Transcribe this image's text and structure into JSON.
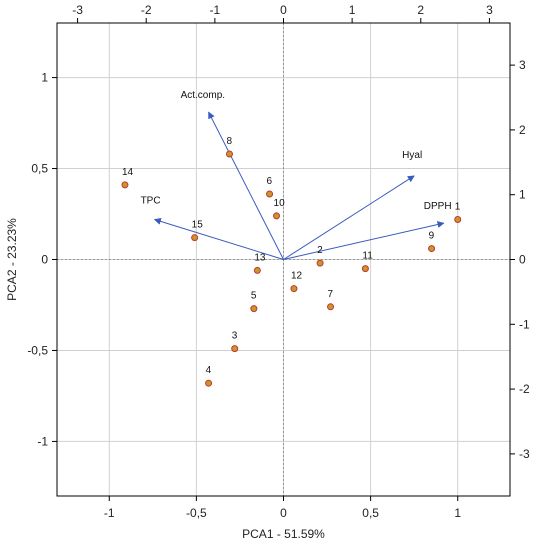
{
  "chart_data": {
    "type": "scatter",
    "title": "",
    "xlabel": "PCA1 - 51.59%",
    "ylabel": "PCA2 - 23.23%",
    "xlim": [
      -1.3,
      1.3
    ],
    "ylim": [
      -1.3,
      1.3
    ],
    "xticks": [
      -1,
      -0.5,
      0,
      0.5,
      1
    ],
    "xtick_labels": [
      "-1",
      "-0,5",
      "0",
      "0,5",
      "1"
    ],
    "yticks": [
      -1,
      -0.5,
      0,
      0.5,
      1
    ],
    "ytick_labels": [
      "-1",
      "-0,5",
      "0",
      "0,5",
      "1"
    ],
    "top_axis": {
      "lim": [
        -3.3,
        3.3
      ],
      "ticks": [
        -3,
        -2,
        -1,
        0,
        1,
        2,
        3
      ],
      "tick_labels": [
        "-3",
        "-2",
        "-1",
        "0",
        "1",
        "2",
        "3"
      ]
    },
    "right_axis": {
      "lim": [
        -3.65,
        3.65
      ],
      "ticks": [
        -3,
        -2,
        -1,
        0,
        1,
        2,
        3
      ],
      "tick_labels": [
        "-3",
        "-2",
        "-1",
        "0",
        "1",
        "2",
        "3"
      ]
    },
    "grid": true,
    "points": [
      {
        "label": "1",
        "x": 1.0,
        "y": 0.22
      },
      {
        "label": "2",
        "x": 0.21,
        "y": -0.02
      },
      {
        "label": "3",
        "x": -0.28,
        "y": -0.49
      },
      {
        "label": "4",
        "x": -0.43,
        "y": -0.68
      },
      {
        "label": "5",
        "x": -0.17,
        "y": -0.27
      },
      {
        "label": "6",
        "x": -0.08,
        "y": 0.36
      },
      {
        "label": "7",
        "x": 0.27,
        "y": -0.26
      },
      {
        "label": "8",
        "x": -0.31,
        "y": 0.58
      },
      {
        "label": "9",
        "x": 0.85,
        "y": 0.06
      },
      {
        "label": "10",
        "x": -0.04,
        "y": 0.24
      },
      {
        "label": "11",
        "x": 0.47,
        "y": -0.05
      },
      {
        "label": "12",
        "x": 0.06,
        "y": -0.16
      },
      {
        "label": "13",
        "x": -0.15,
        "y": -0.06
      },
      {
        "label": "14",
        "x": -0.91,
        "y": 0.41
      },
      {
        "label": "15",
        "x": -0.51,
        "y": 0.12
      }
    ],
    "vectors": [
      {
        "label": "Act.comp.",
        "x": -0.43,
        "y": 0.81
      },
      {
        "label": "TPC",
        "x": -0.74,
        "y": 0.22
      },
      {
        "label": "Hyal",
        "x": 0.75,
        "y": 0.46
      },
      {
        "label": "DPPH",
        "x": 0.92,
        "y": 0.2
      }
    ],
    "colors": {
      "point_fill": "#c8962e",
      "point_stroke": "#c0392b",
      "vector": "#3a5bbf",
      "grid": "#d0d0d0",
      "axis": "#000000"
    }
  }
}
